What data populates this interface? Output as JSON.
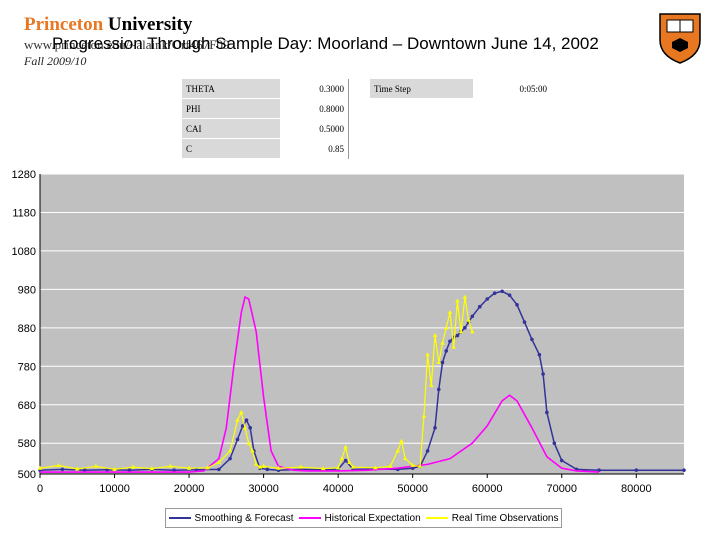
{
  "header": {
    "brand_name": "Princeton",
    "brand_sub": "University",
    "url": "www.princeton.edu/~alaink/Orf467F09",
    "title": "Progression Through Sample Day:  Moorland – Downtown June 14, 2002",
    "semester": "Fall 2009/10"
  },
  "params": [
    {
      "key": "THETA",
      "value": "0.3000"
    },
    {
      "key": "PHI",
      "value": "0.8000"
    },
    {
      "key": "CAI",
      "value": "0.5000"
    },
    {
      "key": "C",
      "value": "0.85"
    }
  ],
  "timestep": {
    "key": "Time Step",
    "value": "0:05:00"
  },
  "colors": {
    "forecast": "#333399",
    "historical": "#ff00ff",
    "realtime": "#ffff00",
    "plot_bg": "#c0c0c0",
    "grid": "#ffffff"
  },
  "chart_data": {
    "type": "line",
    "title": "",
    "xlabel": "",
    "ylabel": "",
    "xlim": [
      0,
      86400
    ],
    "ylim": [
      500,
      1280
    ],
    "xticks": [
      "0",
      "10000",
      "20000",
      "30000",
      "40000",
      "50000",
      "60000",
      "70000",
      "80000"
    ],
    "yticks": [
      "500",
      "580",
      "680",
      "780",
      "880",
      "980",
      "1080",
      "1180",
      "1280"
    ],
    "legend": "bottom",
    "series": [
      {
        "name": "Smoothing & Forecast",
        "x": [
          0,
          3000,
          6000,
          9000,
          12000,
          15000,
          18000,
          21000,
          24000,
          25500,
          26500,
          27200,
          27700,
          28200,
          28700,
          29500,
          30500,
          32000,
          35000,
          38000,
          40000,
          41000,
          42000,
          45000,
          48000,
          50000,
          51000,
          52000,
          53000,
          53500,
          54000,
          54500,
          55000,
          55500,
          56000,
          56500,
          57000,
          57500,
          58000,
          59000,
          60000,
          61000,
          62000,
          63000,
          64000,
          65000,
          66000,
          67000,
          67500,
          68000,
          69000,
          70000,
          72000,
          75000,
          80000,
          86400
        ],
        "y": [
          510,
          512,
          510,
          511,
          510,
          512,
          510,
          511,
          512,
          540,
          590,
          625,
          640,
          620,
          560,
          515,
          512,
          510,
          512,
          511,
          512,
          535,
          512,
          513,
          512,
          515,
          520,
          560,
          620,
          720,
          790,
          820,
          845,
          855,
          860,
          870,
          880,
          895,
          910,
          935,
          955,
          970,
          975,
          965,
          940,
          895,
          850,
          810,
          760,
          660,
          580,
          535,
          512,
          510,
          510,
          510
        ]
      },
      {
        "name": "Historical Expectation",
        "x": [
          0,
          20000,
          22000,
          24000,
          25000,
          26000,
          27000,
          27500,
          28000,
          29000,
          30000,
          31000,
          32000,
          34000,
          36000,
          40000,
          44000,
          48000,
          52000,
          55000,
          58000,
          60000,
          62000,
          63000,
          64000,
          66000,
          68000,
          70000,
          72000,
          75000
        ],
        "y": [
          505,
          505,
          508,
          540,
          620,
          780,
          920,
          960,
          955,
          870,
          700,
          560,
          520,
          510,
          508,
          508,
          510,
          515,
          525,
          540,
          580,
          625,
          690,
          705,
          690,
          620,
          545,
          515,
          508,
          505
        ]
      },
      {
        "name": "Real Time Observations",
        "x": [
          0,
          2500,
          5000,
          7500,
          10000,
          12500,
          15000,
          17500,
          20000,
          22500,
          24000,
          25500,
          26500,
          27000,
          27500,
          28000,
          28500,
          29000,
          29500,
          30000,
          32000,
          35000,
          38000,
          40000,
          40500,
          41000,
          41500,
          42000,
          45000,
          47000,
          48000,
          48500,
          49000,
          50000,
          51000,
          51500,
          52000,
          52500,
          53000,
          53500,
          54000,
          54500,
          55000,
          55500,
          56000,
          56500,
          57000,
          57500,
          58000
        ],
        "y": [
          515,
          522,
          513,
          520,
          512,
          518,
          514,
          520,
          515,
          516,
          530,
          560,
          640,
          660,
          620,
          580,
          560,
          525,
          518,
          520,
          515,
          518,
          514,
          516,
          540,
          570,
          530,
          518,
          516,
          520,
          560,
          585,
          540,
          522,
          520,
          650,
          810,
          730,
          860,
          790,
          840,
          880,
          920,
          830,
          950,
          870,
          960,
          900,
          870
        ]
      }
    ]
  }
}
